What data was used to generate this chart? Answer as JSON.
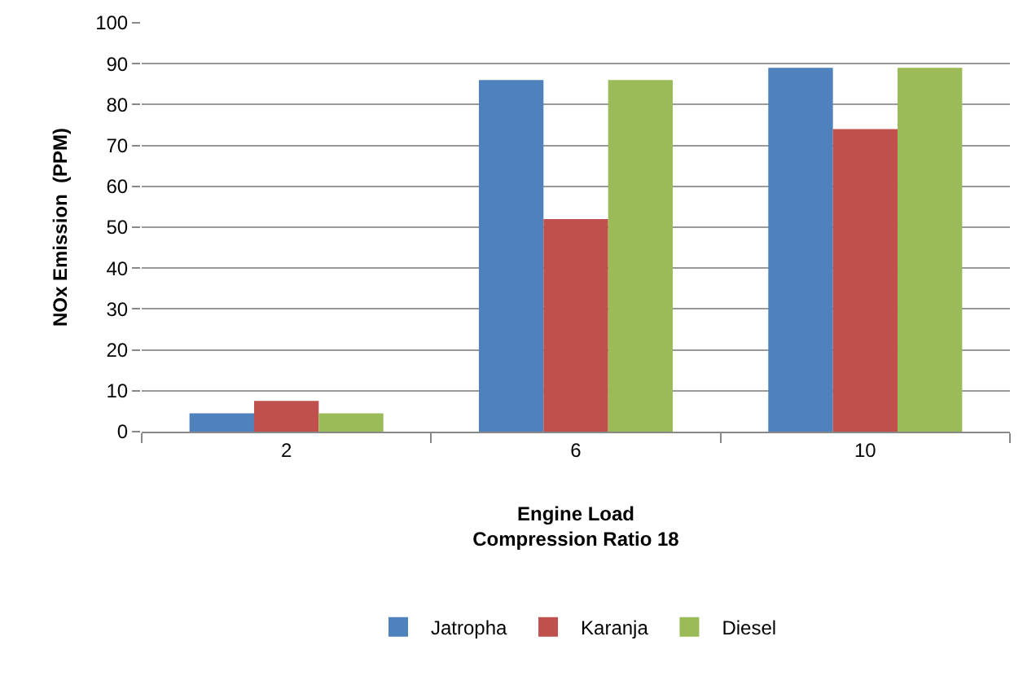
{
  "chart_data": {
    "type": "bar",
    "xlabel": "Engine Load\nCompression Ratio 18",
    "ylabel": "NOx Emission  (PPM)",
    "categories": [
      "2",
      "6",
      "10"
    ],
    "series": [
      {
        "name": "Jatropha",
        "color": "#4f81bd",
        "values": [
          4.5,
          86,
          89
        ]
      },
      {
        "name": "Karanja",
        "color": "#c0504d",
        "values": [
          7.5,
          52,
          74
        ]
      },
      {
        "name": "Diesel",
        "color": "#9bbb59",
        "values": [
          4.5,
          86,
          89
        ]
      }
    ],
    "ylim": [
      0,
      100
    ],
    "yticks": [
      0,
      10,
      20,
      30,
      40,
      50,
      60,
      70,
      80,
      90,
      100
    ],
    "grid": "y",
    "legend": "bottom"
  }
}
